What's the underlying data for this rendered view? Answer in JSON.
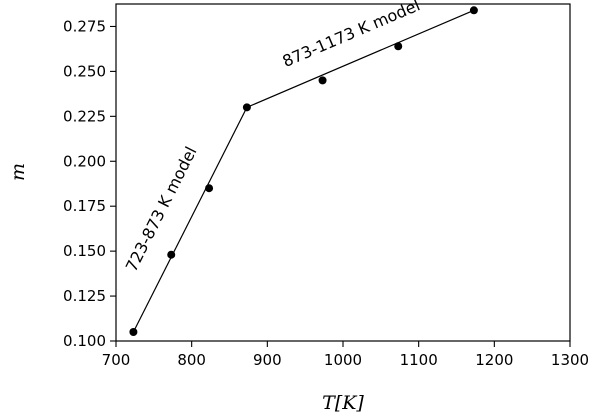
{
  "chart_data": {
    "type": "scatter",
    "xlabel": "T[K]",
    "ylabel": "m",
    "xlim": [
      700,
      1300
    ],
    "ylim": [
      0.1,
      0.2875
    ],
    "xticks": [
      700,
      800,
      900,
      1000,
      1100,
      1200,
      1300
    ],
    "yticks": [
      0.1,
      0.125,
      0.15,
      0.175,
      0.2,
      0.225,
      0.25,
      0.275
    ],
    "xtick_labels": [
      "700",
      "800",
      "900",
      "1000",
      "1100",
      "1200",
      "1300"
    ],
    "ytick_labels": [
      "0.100",
      "0.125",
      "0.150",
      "0.175",
      "0.200",
      "0.225",
      "0.250",
      "0.275"
    ],
    "grid": false,
    "series": [
      {
        "marker": "circle",
        "color": "#000000",
        "x": [
          723,
          773,
          823,
          873,
          973,
          1073,
          1173
        ],
        "y": [
          0.105,
          0.148,
          0.185,
          0.23,
          0.245,
          0.264,
          0.284
        ]
      }
    ],
    "fit_lines": [
      {
        "label": "723-873 K model",
        "x": [
          723,
          873
        ],
        "y": [
          0.105,
          0.23
        ]
      },
      {
        "label": "873-1173 K model",
        "x": [
          873,
          1173
        ],
        "y": [
          0.23,
          0.284
        ]
      }
    ],
    "annotations": [
      "723-873 K model",
      "873-1173 K model"
    ]
  }
}
